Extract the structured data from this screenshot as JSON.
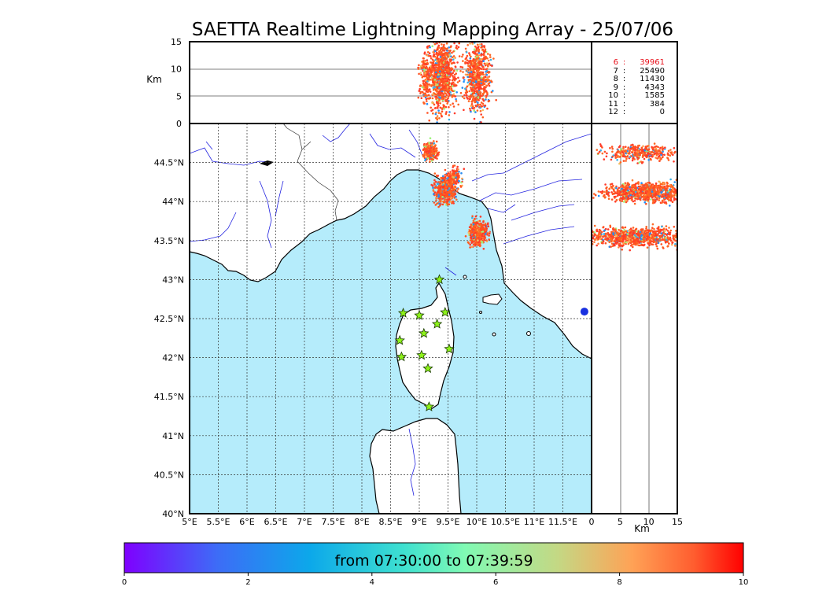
{
  "title": "SAETTA Realtime Lightning Mapping Array - 25/07/06",
  "colors": {
    "sea": "#b5ecfb",
    "land": "#ffffff",
    "rivers": "#2525e0",
    "borders": "#333333",
    "grid": "#333333",
    "station_fill": "#8ef21a",
    "station_edge": "#1a3a00",
    "highlight_count": "#e8101a",
    "marker": "#1830e0"
  },
  "count_table": {
    "rows": [
      {
        "alt": "6",
        "sep": ":",
        "count": "39961",
        "highlight": true
      },
      {
        "alt": "7",
        "sep": ":",
        "count": "25490",
        "highlight": false
      },
      {
        "alt": "8",
        "sep": ":",
        "count": "11430",
        "highlight": false
      },
      {
        "alt": "9",
        "sep": ":",
        "count": "4343",
        "highlight": false
      },
      {
        "alt": "10",
        "sep": ":",
        "count": "1585",
        "highlight": false
      },
      {
        "alt": "11",
        "sep": ":",
        "count": "384",
        "highlight": false
      },
      {
        "alt": "12",
        "sep": ":",
        "count": "0",
        "highlight": false
      }
    ]
  },
  "colorbar": {
    "caption": "from 07:30:00 to 07:39:59",
    "ticks": [
      "0",
      "2",
      "4",
      "6",
      "8",
      "10"
    ],
    "range": [
      0,
      10
    ],
    "colormap": "rainbow"
  },
  "chart_data": [
    {
      "type": "scatter",
      "panel": "map",
      "xlim": [
        5,
        12
      ],
      "ylim": [
        40,
        45
      ],
      "x_ticks": [
        "5°E",
        "5.5°E",
        "6°E",
        "6.5°E",
        "7°E",
        "7.5°E",
        "8°E",
        "8.5°E",
        "9°E",
        "9.5°E",
        "10°E",
        "10.5°E",
        "11°E",
        "11.5°E"
      ],
      "y_ticks": [
        "40°N",
        "40.5°N",
        "41°N",
        "41.5°N",
        "42°N",
        "42.5°N",
        "43°N",
        "43.5°N",
        "44°N",
        "44.5°N"
      ],
      "grid": true,
      "stations": [
        {
          "lon": 9.35,
          "lat": 43.0
        },
        {
          "lon": 8.72,
          "lat": 42.57
        },
        {
          "lon": 9.0,
          "lat": 42.54
        },
        {
          "lon": 9.45,
          "lat": 42.58
        },
        {
          "lon": 9.31,
          "lat": 42.43
        },
        {
          "lon": 9.08,
          "lat": 42.31
        },
        {
          "lon": 8.66,
          "lat": 42.22
        },
        {
          "lon": 9.52,
          "lat": 42.11
        },
        {
          "lon": 8.69,
          "lat": 42.01
        },
        {
          "lon": 9.04,
          "lat": 42.03
        },
        {
          "lon": 9.15,
          "lat": 41.86
        },
        {
          "lon": 9.17,
          "lat": 41.37
        }
      ],
      "clusters": [
        {
          "lon_center": 9.2,
          "lat_center": 44.65,
          "lon_spread": 0.06,
          "lat_spread": 0.06,
          "count": 220
        },
        {
          "lon_center": 9.45,
          "lat_center": 44.15,
          "lon_spread": 0.09,
          "lat_spread": 0.09,
          "count": 480
        },
        {
          "lon_center": 9.62,
          "lat_center": 44.3,
          "lon_spread": 0.07,
          "lat_spread": 0.07,
          "count": 140
        },
        {
          "lon_center": 10.03,
          "lat_center": 43.6,
          "lon_spread": 0.08,
          "lat_spread": 0.08,
          "count": 420
        }
      ],
      "sample_markers": [
        {
          "lon": 11.93,
          "lat": 42.59
        }
      ]
    },
    {
      "type": "scatter",
      "panel": "lon-altitude",
      "xlabel": "",
      "ylabel": "Km",
      "xlim": [
        5,
        12
      ],
      "ylim": [
        0,
        15
      ],
      "y_ticks": [
        "0",
        "5",
        "10",
        "15"
      ],
      "clusters": [
        {
          "lon_center": 9.1,
          "alt_center": 8.5,
          "lon_spread": 0.05,
          "alt_spread": 2.3,
          "count": 160
        },
        {
          "lon_center": 9.4,
          "alt_center": 8.7,
          "lon_spread": 0.12,
          "alt_spread": 3.4,
          "count": 900
        },
        {
          "lon_center": 10.0,
          "alt_center": 8.6,
          "lon_spread": 0.11,
          "alt_spread": 3.4,
          "count": 700
        }
      ]
    },
    {
      "type": "scatter",
      "panel": "altitude-lat",
      "xlabel": "Km",
      "xlim": [
        0,
        15
      ],
      "ylim": [
        40,
        45
      ],
      "x_ticks": [
        "0",
        "5",
        "10",
        "15"
      ],
      "clusters": [
        {
          "alt_center": 8.5,
          "lat_center": 44.62,
          "alt_spread": 3.2,
          "lat_spread": 0.05,
          "count": 350
        },
        {
          "alt_center": 10.0,
          "lat_center": 44.12,
          "alt_spread": 3.8,
          "lat_spread": 0.06,
          "count": 900
        },
        {
          "alt_center": 7.5,
          "lat_center": 43.55,
          "alt_spread": 4.2,
          "lat_spread": 0.06,
          "count": 850
        }
      ]
    }
  ]
}
